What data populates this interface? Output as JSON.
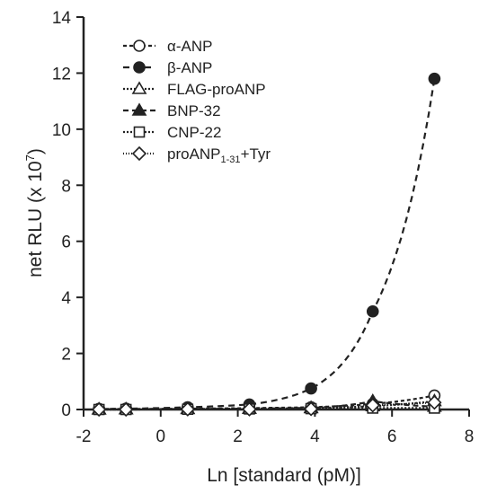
{
  "chart_data": {
    "type": "scatter",
    "xlabel": "Ln [standard (pM)]",
    "ylabel_main": "net RLU (x 10",
    "ylabel_exp": "7",
    "ylabel_tail": ")",
    "xlim": [
      -2,
      8
    ],
    "ylim": [
      0,
      14
    ],
    "xticks": [
      -2,
      0,
      2,
      4,
      6,
      8
    ],
    "yticks": [
      0,
      2,
      4,
      6,
      8,
      10,
      12,
      14
    ],
    "grid": false,
    "legend_position": "top-left",
    "x": [
      -1.6,
      -0.9,
      0.7,
      2.3,
      3.9,
      5.5,
      7.1
    ],
    "series": [
      {
        "name": "α-ANP",
        "name_parts": [
          "α-ANP"
        ],
        "marker": "circle-open",
        "dash": "4,3",
        "values": [
          0.02,
          0.02,
          0.03,
          0.05,
          0.08,
          0.2,
          0.5
        ]
      },
      {
        "name": "β-ANP",
        "name_parts": [
          "β-ANP"
        ],
        "marker": "circle-filled",
        "dash": "7,5",
        "values": [
          0.02,
          0.03,
          0.08,
          0.18,
          0.75,
          3.5,
          11.8
        ]
      },
      {
        "name": "FLAG-proANP",
        "name_parts": [
          "FLAG-proANP"
        ],
        "marker": "triangle-open",
        "dash": "2,2",
        "values": [
          0.01,
          0.01,
          0.02,
          0.03,
          0.05,
          0.12,
          0.3
        ]
      },
      {
        "name": "BNP-32",
        "name_parts": [
          "BNP-32"
        ],
        "marker": "triangle-filled",
        "dash": "6,4",
        "values": [
          0.0,
          0.01,
          0.02,
          0.03,
          0.06,
          0.3,
          0.1
        ]
      },
      {
        "name": "CNP-22",
        "name_parts": [
          "CNP-22"
        ],
        "marker": "square-open",
        "dash": "2,2",
        "values": [
          0.0,
          0.0,
          0.01,
          0.02,
          0.03,
          0.05,
          0.05
        ]
      },
      {
        "name": "proANP1-31+Tyr",
        "name_parts": [
          "proANP",
          "1-31",
          "+Tyr"
        ],
        "marker": "diamond-open",
        "dash": "1,2",
        "values": [
          0.0,
          0.0,
          0.01,
          0.01,
          0.02,
          0.15,
          0.25
        ]
      }
    ]
  }
}
